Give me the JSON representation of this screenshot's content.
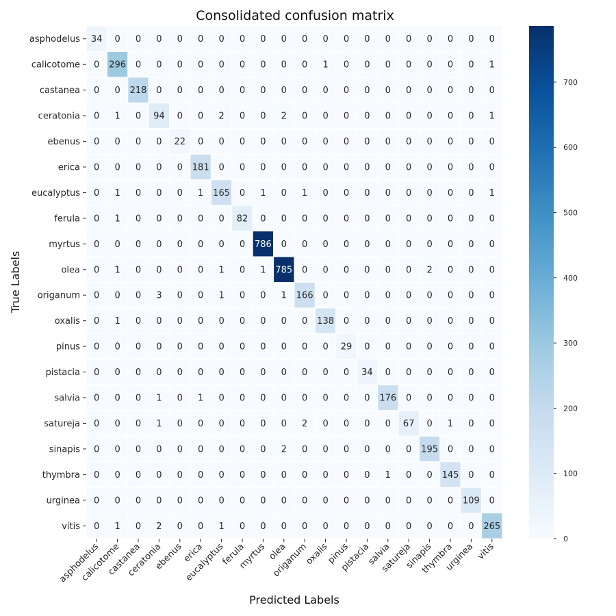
{
  "chart_data": {
    "type": "heatmap",
    "title": "Consolidated confusion matrix",
    "xlabel": "Predicted Labels",
    "ylabel": "True Labels",
    "x_categories": [
      "asphodelus",
      "calicotome",
      "castanea",
      "ceratonia",
      "ebenus",
      "erica",
      "eucalyptus",
      "ferula",
      "myrtus",
      "olea",
      "origanum",
      "oxalis",
      "pinus",
      "pistacia",
      "salvia",
      "satureja",
      "sinapis",
      "thymbra",
      "urginea",
      "vitis"
    ],
    "y_categories": [
      "asphodelus",
      "calicotome",
      "castanea",
      "ceratonia",
      "ebenus",
      "erica",
      "eucalyptus",
      "ferula",
      "myrtus",
      "olea",
      "origanum",
      "oxalis",
      "pinus",
      "pistacia",
      "salvia",
      "satureja",
      "sinapis",
      "thymbra",
      "urginea",
      "vitis"
    ],
    "values": [
      [
        34,
        0,
        0,
        0,
        0,
        0,
        0,
        0,
        0,
        0,
        0,
        0,
        0,
        0,
        0,
        0,
        0,
        0,
        0,
        0
      ],
      [
        0,
        296,
        0,
        0,
        0,
        0,
        0,
        0,
        0,
        0,
        0,
        1,
        0,
        0,
        0,
        0,
        0,
        0,
        0,
        1
      ],
      [
        0,
        0,
        218,
        0,
        0,
        0,
        0,
        0,
        0,
        0,
        0,
        0,
        0,
        0,
        0,
        0,
        0,
        0,
        0,
        0
      ],
      [
        0,
        1,
        0,
        94,
        0,
        0,
        2,
        0,
        0,
        2,
        0,
        0,
        0,
        0,
        0,
        0,
        0,
        0,
        0,
        1
      ],
      [
        0,
        0,
        0,
        0,
        22,
        0,
        0,
        0,
        0,
        0,
        0,
        0,
        0,
        0,
        0,
        0,
        0,
        0,
        0,
        0
      ],
      [
        0,
        0,
        0,
        0,
        0,
        181,
        0,
        0,
        0,
        0,
        0,
        0,
        0,
        0,
        0,
        0,
        0,
        0,
        0,
        0
      ],
      [
        0,
        1,
        0,
        0,
        0,
        1,
        165,
        0,
        1,
        0,
        1,
        0,
        0,
        0,
        0,
        0,
        0,
        0,
        0,
        1
      ],
      [
        0,
        1,
        0,
        0,
        0,
        0,
        0,
        82,
        0,
        0,
        0,
        0,
        0,
        0,
        0,
        0,
        0,
        0,
        0,
        0
      ],
      [
        0,
        0,
        0,
        0,
        0,
        0,
        0,
        0,
        786,
        0,
        0,
        0,
        0,
        0,
        0,
        0,
        0,
        0,
        0,
        0
      ],
      [
        0,
        1,
        0,
        0,
        0,
        0,
        1,
        0,
        1,
        785,
        0,
        0,
        0,
        0,
        0,
        0,
        2,
        0,
        0,
        0
      ],
      [
        0,
        0,
        0,
        3,
        0,
        0,
        1,
        0,
        0,
        1,
        166,
        0,
        0,
        0,
        0,
        0,
        0,
        0,
        0,
        0
      ],
      [
        0,
        1,
        0,
        0,
        0,
        0,
        0,
        0,
        0,
        0,
        0,
        138,
        0,
        0,
        0,
        0,
        0,
        0,
        0,
        0
      ],
      [
        0,
        0,
        0,
        0,
        0,
        0,
        0,
        0,
        0,
        0,
        0,
        0,
        29,
        0,
        0,
        0,
        0,
        0,
        0,
        0
      ],
      [
        0,
        0,
        0,
        0,
        0,
        0,
        0,
        0,
        0,
        0,
        0,
        0,
        0,
        34,
        0,
        0,
        0,
        0,
        0,
        0
      ],
      [
        0,
        0,
        0,
        1,
        0,
        1,
        0,
        0,
        0,
        0,
        0,
        0,
        0,
        0,
        176,
        0,
        0,
        0,
        0,
        0
      ],
      [
        0,
        0,
        0,
        1,
        0,
        0,
        0,
        0,
        0,
        0,
        2,
        0,
        0,
        0,
        0,
        67,
        0,
        1,
        0,
        0
      ],
      [
        0,
        0,
        0,
        0,
        0,
        0,
        0,
        0,
        0,
        2,
        0,
        0,
        0,
        0,
        0,
        0,
        195,
        0,
        0,
        0
      ],
      [
        0,
        0,
        0,
        0,
        0,
        0,
        0,
        0,
        0,
        0,
        0,
        0,
        0,
        0,
        1,
        0,
        0,
        145,
        0,
        0
      ],
      [
        0,
        0,
        0,
        0,
        0,
        0,
        0,
        0,
        0,
        0,
        0,
        0,
        0,
        0,
        0,
        0,
        0,
        0,
        109,
        0
      ],
      [
        0,
        1,
        0,
        2,
        0,
        0,
        1,
        0,
        0,
        0,
        0,
        0,
        0,
        0,
        0,
        0,
        0,
        0,
        0,
        265
      ]
    ],
    "colormap": "Blues",
    "vmin": 0,
    "vmax": 786,
    "colorbar_ticks": [
      0,
      100,
      200,
      300,
      400,
      500,
      600,
      700
    ],
    "grid": true,
    "grid_color": "#ffffff"
  }
}
